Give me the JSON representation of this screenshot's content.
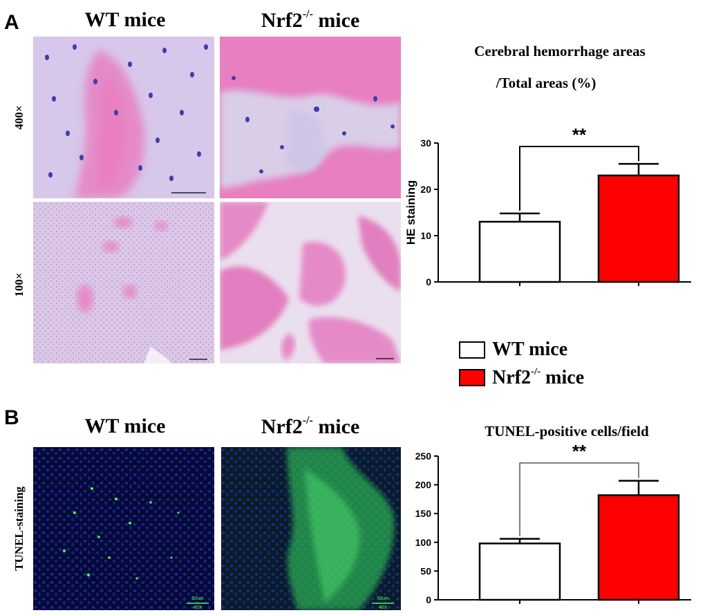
{
  "panel_a": {
    "letter": "A",
    "col_titles": {
      "wt": "WT mice",
      "nrf2_base": "Nrf2",
      "nrf2_sup": "-/-",
      "nrf2_tail": "mice"
    },
    "row_labels": {
      "r1": "400×",
      "r2": "100×"
    }
  },
  "panel_b": {
    "letter": "B",
    "col_titles": {
      "wt": "WT mice",
      "nrf2_base": "Nrf2",
      "nrf2_sup": "-/-",
      "nrf2_tail": "mice"
    },
    "row_label": "TUNEL-staining",
    "scale_text": {
      "bar": "50um",
      "mag": "40X"
    }
  },
  "legend": {
    "wt": {
      "label": "WT mice",
      "color": "#ffffff"
    },
    "nrf2": {
      "label_base": "Nrf2",
      "label_sup": "-/-",
      "label_tail": "mice",
      "color": "#ff0000"
    }
  },
  "chart_titles": {
    "he_line1": "Cerebral hemorrhage areas",
    "he_line2": "/Total areas (%)",
    "tunel": "TUNEL-positive cells/field"
  },
  "chart_data": [
    {
      "type": "bar",
      "title": "Cerebral hemorrhage areas /Total areas (%)",
      "ylabel": "HE staining",
      "xlabel": "",
      "categories": [
        "WT mice",
        "Nrf2-/- mice"
      ],
      "values": [
        13,
        23
      ],
      "errors": [
        1.8,
        2.5
      ],
      "colors": [
        "#ffffff",
        "#ff0000"
      ],
      "ylim": [
        0,
        30
      ],
      "yticks": [
        0,
        10,
        20,
        30
      ],
      "significance": "**"
    },
    {
      "type": "bar",
      "title": "TUNEL-positive cells/field",
      "ylabel": "",
      "xlabel": "",
      "categories": [
        "WT mice",
        "Nrf2-/- mice"
      ],
      "values": [
        98,
        182
      ],
      "errors": [
        8,
        25
      ],
      "colors": [
        "#ffffff",
        "#ff0000"
      ],
      "ylim": [
        0,
        250
      ],
      "yticks": [
        0,
        50,
        100,
        150,
        200,
        250
      ],
      "significance": "**"
    }
  ]
}
